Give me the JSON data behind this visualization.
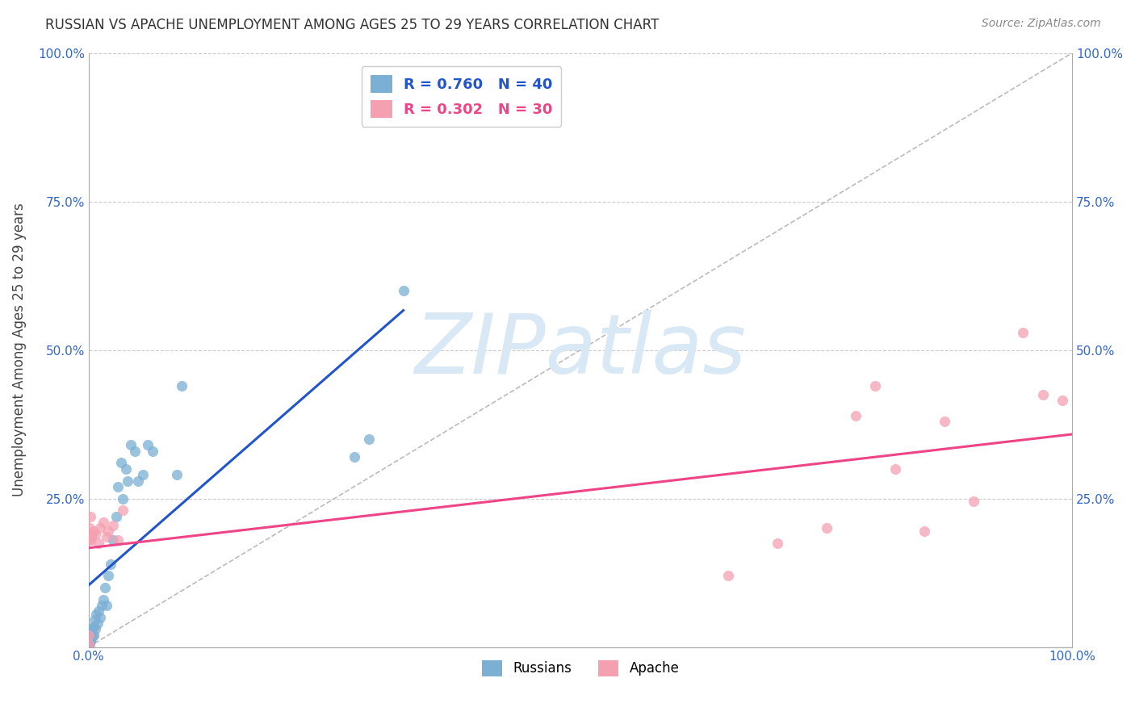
{
  "title": "RUSSIAN VS APACHE UNEMPLOYMENT AMONG AGES 25 TO 29 YEARS CORRELATION CHART",
  "source": "Source: ZipAtlas.com",
  "ylabel": "Unemployment Among Ages 25 to 29 years",
  "xlim": [
    0,
    1.0
  ],
  "ylim": [
    0,
    1.0
  ],
  "russian_color": "#7bafd4",
  "apache_color": "#f4a0b0",
  "russian_line_color": "#2255cc",
  "apache_line_color": "#ee4488",
  "diagonal_color": "#bbbbbb",
  "watermark_color": "#d8e8f5",
  "background_color": "#ffffff",
  "grid_color": "#cccccc",
  "tick_color": "#3366cc",
  "russians_x": [
    0.0,
    0.001,
    0.001,
    0.002,
    0.002,
    0.003,
    0.003,
    0.004,
    0.005,
    0.005,
    0.006,
    0.007,
    0.008,
    0.009,
    0.01,
    0.012,
    0.013,
    0.015,
    0.017,
    0.018,
    0.02,
    0.022,
    0.025,
    0.028,
    0.03,
    0.033,
    0.035,
    0.038,
    0.04,
    0.043,
    0.047,
    0.05,
    0.055,
    0.06,
    0.065,
    0.09,
    0.095,
    0.27,
    0.285,
    0.32
  ],
  "russians_y": [
    0.0,
    0.005,
    0.015,
    0.01,
    0.025,
    0.015,
    0.03,
    0.02,
    0.035,
    0.02,
    0.045,
    0.03,
    0.055,
    0.04,
    0.06,
    0.05,
    0.07,
    0.08,
    0.1,
    0.07,
    0.12,
    0.14,
    0.18,
    0.22,
    0.27,
    0.31,
    0.25,
    0.3,
    0.28,
    0.34,
    0.33,
    0.28,
    0.29,
    0.34,
    0.33,
    0.29,
    0.44,
    0.32,
    0.35,
    0.6
  ],
  "apache_x": [
    0.0,
    0.0,
    0.001,
    0.001,
    0.002,
    0.002,
    0.003,
    0.003,
    0.005,
    0.007,
    0.01,
    0.012,
    0.015,
    0.018,
    0.02,
    0.025,
    0.03,
    0.035,
    0.65,
    0.7,
    0.75,
    0.78,
    0.8,
    0.82,
    0.85,
    0.87,
    0.9,
    0.95,
    0.97,
    0.99
  ],
  "apache_y": [
    0.005,
    0.02,
    0.18,
    0.2,
    0.18,
    0.22,
    0.185,
    0.19,
    0.195,
    0.19,
    0.175,
    0.2,
    0.21,
    0.185,
    0.195,
    0.205,
    0.18,
    0.23,
    0.12,
    0.175,
    0.2,
    0.39,
    0.44,
    0.3,
    0.195,
    0.38,
    0.245,
    0.53,
    0.425,
    0.415
  ],
  "legend_label_russian": "R = 0.760   N = 40",
  "legend_label_apache": "R = 0.302   N = 30",
  "legend_text_russian": "#2255cc",
  "legend_text_apache": "#ee4488"
}
